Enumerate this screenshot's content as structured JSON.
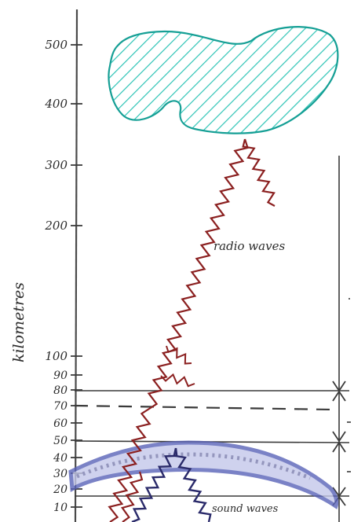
{
  "axis": {
    "label": "kilometres",
    "ticks": [
      {
        "value": 500,
        "label": "500"
      },
      {
        "value": 400,
        "label": "400"
      },
      {
        "value": 300,
        "label": "300"
      },
      {
        "value": 200,
        "label": "200"
      },
      {
        "value": 100,
        "label": "100"
      },
      {
        "value": 90,
        "label": "90"
      },
      {
        "value": 80,
        "label": "80"
      },
      {
        "value": 70,
        "label": "70"
      },
      {
        "value": 60,
        "label": "60"
      },
      {
        "value": 50,
        "label": "50"
      },
      {
        "value": 40,
        "label": "40"
      },
      {
        "value": 30,
        "label": "30"
      },
      {
        "value": 20,
        "label": "20"
      },
      {
        "value": 10,
        "label": "10"
      }
    ]
  },
  "labels": {
    "radio": "radio waves",
    "sound": "sound waves"
  },
  "colors": {
    "ink": "#3a3a3a",
    "cloud_fill": "#2ec4b6",
    "cloud_outline": "#159f95",
    "radio_wave": "#8b2020",
    "sound_wave": "#2a2a6a",
    "sound_layer": "#5a63b8"
  }
}
